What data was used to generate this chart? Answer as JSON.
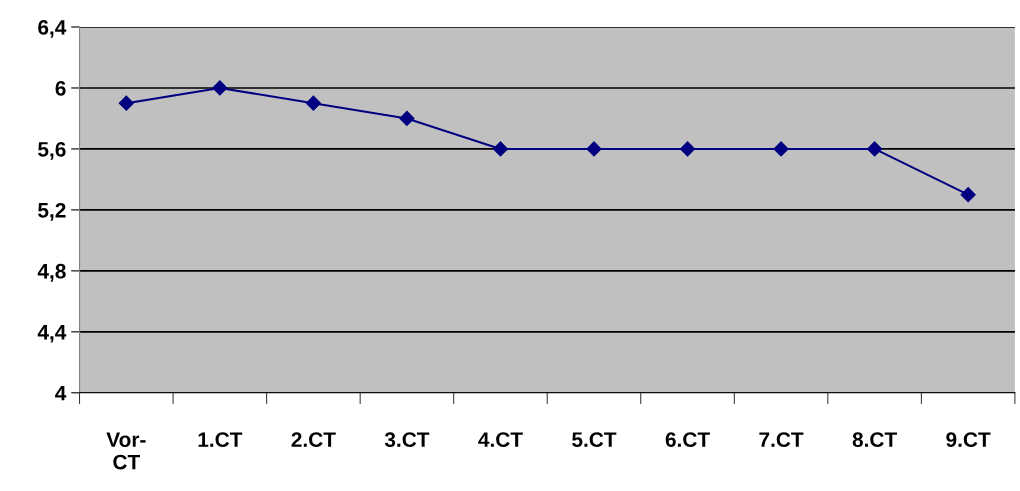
{
  "chart_data": {
    "type": "line",
    "categories": [
      "Vor-\nCT",
      "1.CT",
      "2.CT",
      "3.CT",
      "4.CT",
      "5.CT",
      "6.CT",
      "7.CT",
      "8.CT",
      "9.CT"
    ],
    "series": [
      {
        "color": "#000080",
        "values": [
          5.9,
          6.0,
          5.9,
          5.8,
          5.6,
          5.6,
          5.6,
          5.6,
          5.6,
          5.3
        ]
      }
    ],
    "ylim": [
      4,
      6.4
    ],
    "yticks": [
      {
        "value": 4,
        "label": "4"
      },
      {
        "value": 4.4,
        "label": "4,4"
      },
      {
        "value": 4.8,
        "label": "4,8"
      },
      {
        "value": 5.2,
        "label": "5,2"
      },
      {
        "value": 5.6,
        "label": "5,6"
      },
      {
        "value": 6,
        "label": "6"
      },
      {
        "value": 6.4,
        "label": "6,4"
      }
    ],
    "grid": "y",
    "marker": "diamond",
    "line_style": "solid",
    "legend": false
  }
}
